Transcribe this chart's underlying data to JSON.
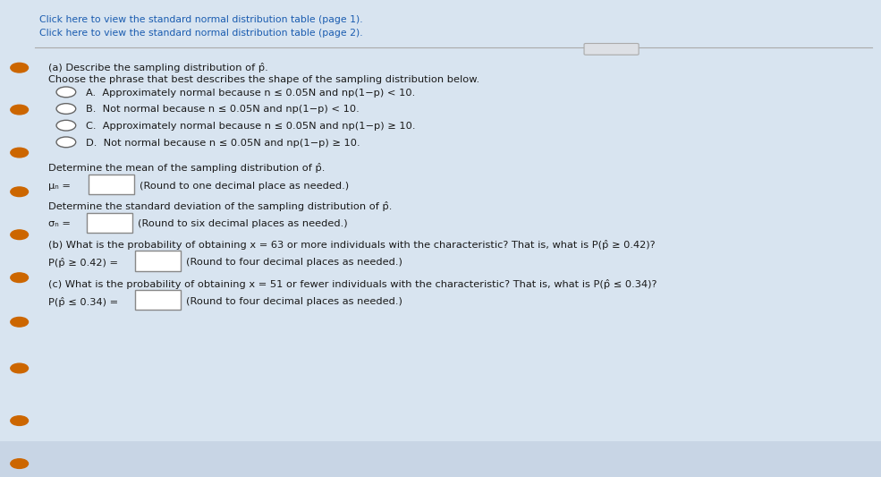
{
  "background_color": "#d8e4f0",
  "panel_color": "#dde8f2",
  "link1": "Click here to view the standard normal distribution table (page 1).",
  "link2": "Click here to view the standard normal distribution table (page 2).",
  "part_a_header": "(a) Describe the sampling distribution of p̂.",
  "part_a_subheader": "Choose the phrase that best describes the shape of the sampling distribution below.",
  "option_A": "A.  Approximately normal because n ≤ 0.05N and np(1−p) < 10.",
  "option_B": "B.  Not normal because n ≤ 0.05N and np(1−p) < 10.",
  "option_C": "C.  Approximately normal because n ≤ 0.05N and np(1−p) ≥ 10.",
  "option_D": "D.  Not normal because n ≤ 0.05N and np(1−p) ≥ 10.",
  "mean_header": "Determine the mean of the sampling distribution of p̂.",
  "mean_formula": "μₙ =",
  "mean_note": "(Round to one decimal place as needed.)",
  "std_header": "Determine the standard deviation of the sampling distribution of p̂.",
  "std_formula": "σₙ =",
  "std_note": "(Round to six decimal places as needed.)",
  "part_b_text": "(b) What is the probability of obtaining x = 63 or more individuals with the characteristic? That is, what is P(p̂ ≥ 0.42)?",
  "part_b_formula": "P(p̂ ≥ 0.42) =",
  "part_b_note": "(Round to four decimal places as needed.)",
  "part_c_text": "(c) What is the probability of obtaining x = 51 or fewer individuals with the characteristic? That is, what is P(p̂ ≤ 0.34)?",
  "part_c_formula": "P(p̂ ≤ 0.34) =",
  "part_c_note": "(Round to four decimal places as needed.)",
  "text_color": "#1a1a1a",
  "link_color": "#1a5cb0",
  "bullet_color": "#cc6600"
}
